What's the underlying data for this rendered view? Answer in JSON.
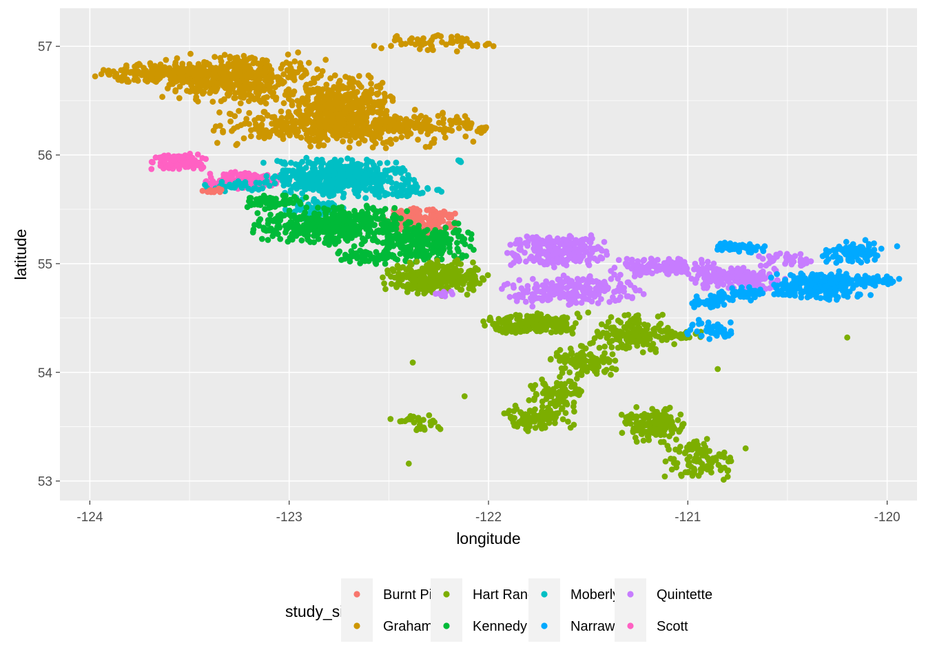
{
  "chart_data": {
    "type": "scatter",
    "title": "",
    "xlabel": "longitude",
    "ylabel": "latitude",
    "xlim": [
      -124.15,
      -119.85
    ],
    "ylim": [
      52.82,
      57.35
    ],
    "x_ticks": [
      -124,
      -123,
      -122,
      -121,
      -120
    ],
    "y_ticks": [
      53,
      54,
      55,
      56,
      57
    ],
    "x_tick_labels": [
      "-124",
      "-123",
      "-122",
      "-121",
      "-120"
    ],
    "y_tick_labels": [
      "53",
      "54",
      "55",
      "56",
      "57"
    ],
    "grid": true,
    "background": "#ebebeb",
    "legend": {
      "title": "study_site",
      "position": "bottom",
      "ncol": 4,
      "entries": [
        "Burnt Pine",
        "Graham",
        "Hart Ranges",
        "Kennedy",
        "Moberly",
        "Narraway",
        "Quintette",
        "Scott"
      ]
    },
    "series": [
      {
        "name": "Graham",
        "color": "#CD9600",
        "clusters": [
          {
            "x_range": [
              -124.0,
              -123.2
            ],
            "y_range": [
              56.65,
              56.85
            ],
            "n": 260
          },
          {
            "x_range": [
              -123.7,
              -122.8
            ],
            "y_range": [
              56.45,
              56.95
            ],
            "n": 420
          },
          {
            "x_range": [
              -123.0,
              -122.45
            ],
            "y_range": [
              56.15,
              56.75
            ],
            "n": 360
          },
          {
            "x_range": [
              -123.5,
              -122.0
            ],
            "y_range": [
              56.05,
              56.45
            ],
            "n": 360
          },
          {
            "x_range": [
              -122.95,
              -122.0
            ],
            "y_range": [
              56.2,
              56.35
            ],
            "n": 120
          },
          {
            "x_range": [
              -122.6,
              -122.05
            ],
            "y_range": [
              56.95,
              57.12
            ],
            "n": 50
          },
          {
            "x_range": [
              -122.1,
              -121.95
            ],
            "y_range": [
              56.99,
              57.04
            ],
            "n": 6
          },
          {
            "x_range": [
              -122.06,
              -122.0
            ],
            "y_range": [
              56.22,
              56.28
            ],
            "n": 4
          }
        ]
      },
      {
        "name": "Scott",
        "color": "#FF61C3",
        "clusters": [
          {
            "x_range": [
              -123.7,
              -123.4
            ],
            "y_range": [
              55.85,
              56.02
            ],
            "n": 110
          },
          {
            "x_range": [
              -123.45,
              -123.0
            ],
            "y_range": [
              55.68,
              55.85
            ],
            "n": 150
          }
        ]
      },
      {
        "name": "Moberly",
        "color": "#00BFC4",
        "clusters": [
          {
            "x_range": [
              -123.15,
              -122.35
            ],
            "y_range": [
              55.6,
              55.98
            ],
            "n": 460
          },
          {
            "x_range": [
              -123.45,
              -123.1
            ],
            "y_range": [
              55.65,
              55.78
            ],
            "n": 40
          },
          {
            "x_range": [
              -123.05,
              -122.7
            ],
            "y_range": [
              55.4,
              55.6
            ],
            "n": 60
          },
          {
            "x_range": [
              -122.6,
              -122.2
            ],
            "y_range": [
              55.6,
              55.72
            ],
            "n": 40
          },
          {
            "x_range": [
              -122.18,
              -122.12
            ],
            "y_range": [
              55.93,
              55.97
            ],
            "n": 4
          }
        ]
      },
      {
        "name": "Burnt Pine",
        "color": "#F8766D",
        "clusters": [
          {
            "x_range": [
              -122.55,
              -122.15
            ],
            "y_range": [
              55.25,
              55.55
            ],
            "n": 170
          },
          {
            "x_range": [
              -123.45,
              -123.3
            ],
            "y_range": [
              55.64,
              55.7
            ],
            "n": 12
          }
        ]
      },
      {
        "name": "Kennedy",
        "color": "#00BA38",
        "clusters": [
          {
            "x_range": [
              -123.2,
              -122.35
            ],
            "y_range": [
              55.15,
              55.55
            ],
            "n": 460
          },
          {
            "x_range": [
              -122.6,
              -122.05
            ],
            "y_range": [
              55.0,
              55.4
            ],
            "n": 220
          },
          {
            "x_range": [
              -123.25,
              -122.9
            ],
            "y_range": [
              55.5,
              55.65
            ],
            "n": 60
          },
          {
            "x_range": [
              -122.8,
              -122.4
            ],
            "y_range": [
              54.98,
              55.15
            ],
            "n": 60
          }
        ]
      },
      {
        "name": "Hart Ranges",
        "color": "#7CAE00",
        "clusters": [
          {
            "x_range": [
              -122.55,
              -122.0
            ],
            "y_range": [
              54.7,
              55.05
            ],
            "n": 300
          },
          {
            "x_range": [
              -122.05,
              -121.5
            ],
            "y_range": [
              54.35,
              54.55
            ],
            "n": 220
          },
          {
            "x_range": [
              -121.5,
              -121.05
            ],
            "y_range": [
              54.15,
              54.55
            ],
            "n": 160
          },
          {
            "x_range": [
              -121.7,
              -121.35
            ],
            "y_range": [
              53.95,
              54.25
            ],
            "n": 110
          },
          {
            "x_range": [
              -121.8,
              -121.5
            ],
            "y_range": [
              53.65,
              53.95
            ],
            "n": 80
          },
          {
            "x_range": [
              -121.95,
              -121.55
            ],
            "y_range": [
              53.45,
              53.72
            ],
            "n": 90
          },
          {
            "x_range": [
              -121.35,
              -121.0
            ],
            "y_range": [
              53.35,
              53.7
            ],
            "n": 160
          },
          {
            "x_range": [
              -121.15,
              -120.75
            ],
            "y_range": [
              53.0,
              53.4
            ],
            "n": 90
          },
          {
            "x_range": [
              -122.5,
              -122.2
            ],
            "y_range": [
              53.45,
              53.65
            ],
            "n": 30
          },
          {
            "x_range": [
              -121.15,
              -120.9
            ],
            "y_range": [
              54.3,
              54.38
            ],
            "n": 30
          }
        ],
        "points": [
          [
            -122.38,
            54.09
          ],
          [
            -122.12,
            53.78
          ],
          [
            -122.4,
            53.16
          ],
          [
            -120.2,
            54.32
          ],
          [
            -120.85,
            54.03
          ],
          [
            -120.8,
            53.04
          ],
          [
            -121.0,
            53.08
          ],
          [
            -120.71,
            53.3
          ],
          [
            -121.5,
            54.55
          ]
        ]
      },
      {
        "name": "Quintette",
        "color": "#C77CFF",
        "clusters": [
          {
            "x_range": [
              -121.95,
              -121.35
            ],
            "y_range": [
              54.95,
              55.28
            ],
            "n": 240
          },
          {
            "x_range": [
              -121.4,
              -120.85
            ],
            "y_range": [
              54.88,
              55.05
            ],
            "n": 140
          },
          {
            "x_range": [
              -121.0,
              -120.5
            ],
            "y_range": [
              54.75,
              54.98
            ],
            "n": 160
          },
          {
            "x_range": [
              -121.95,
              -121.2
            ],
            "y_range": [
              54.6,
              54.9
            ],
            "n": 220
          },
          {
            "x_range": [
              -120.65,
              -120.3
            ],
            "y_range": [
              54.95,
              55.1
            ],
            "n": 40
          },
          {
            "x_range": [
              -122.3,
              -122.15
            ],
            "y_range": [
              54.68,
              54.76
            ],
            "n": 8
          }
        ]
      },
      {
        "name": "Narraway",
        "color": "#00A9FF",
        "clusters": [
          {
            "x_range": [
              -120.6,
              -120.05
            ],
            "y_range": [
              54.65,
              54.95
            ],
            "n": 220
          },
          {
            "x_range": [
              -120.35,
              -120.0
            ],
            "y_range": [
              55.0,
              55.22
            ],
            "n": 100
          },
          {
            "x_range": [
              -120.9,
              -120.6
            ],
            "y_range": [
              55.1,
              55.2
            ],
            "n": 50
          },
          {
            "x_range": [
              -120.85,
              -120.6
            ],
            "y_range": [
              54.65,
              54.8
            ],
            "n": 40
          },
          {
            "x_range": [
              -121.0,
              -120.75
            ],
            "y_range": [
              54.58,
              54.72
            ],
            "n": 40
          },
          {
            "x_range": [
              -121.05,
              -120.75
            ],
            "y_range": [
              54.3,
              54.5
            ],
            "n": 40
          },
          {
            "x_range": [
              -120.15,
              -119.95
            ],
            "y_range": [
              54.78,
              54.9
            ],
            "n": 30
          }
        ],
        "points": [
          [
            -119.95,
            55.16
          ],
          [
            -119.94,
            54.86
          ],
          [
            -121.0,
            54.35
          ]
        ]
      }
    ]
  }
}
